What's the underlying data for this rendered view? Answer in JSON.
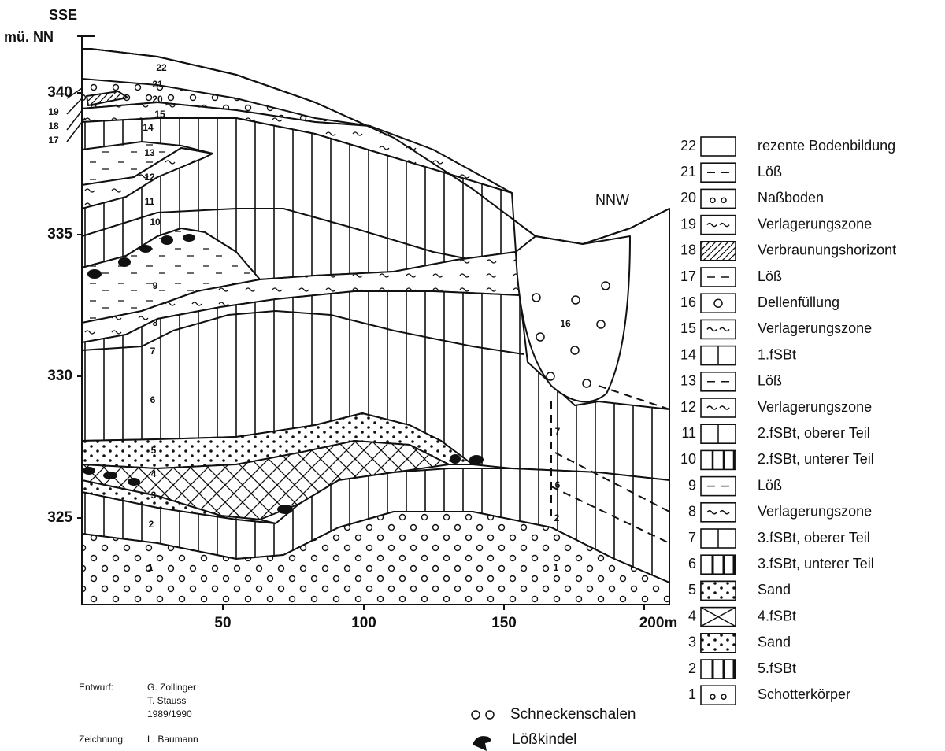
{
  "header": {
    "left_direction": "SSE",
    "elevation_unit": "mü. NN",
    "right_direction": "NNW"
  },
  "y_axis_labels": [
    "340",
    "335",
    "330",
    "325"
  ],
  "x_axis_labels": [
    "50",
    "100",
    "150",
    "200m"
  ],
  "section_labels": [
    "22",
    "21",
    "20",
    "19",
    "18",
    "17",
    "15",
    "14",
    "13",
    "12",
    "11",
    "10",
    "9",
    "8",
    "7",
    "6",
    "5",
    "4",
    "3",
    "2",
    "1",
    "16",
    "7",
    "6",
    "2",
    "1"
  ],
  "legend": [
    {
      "number": "22",
      "label": "rezente Bodenbildung"
    },
    {
      "number": "21",
      "label": "Löß"
    },
    {
      "number": "20",
      "label": "Naßboden"
    },
    {
      "number": "19",
      "label": "Verlagerungszone"
    },
    {
      "number": "18",
      "label": "Verbraunungshorizont"
    },
    {
      "number": "17",
      "label": "Löß"
    },
    {
      "number": "16",
      "label": "Dellenfüllung"
    },
    {
      "number": "15",
      "label": "Verlagerungszone"
    },
    {
      "number": "14",
      "label": "1.fSBt"
    },
    {
      "number": "13",
      "label": "Löß"
    },
    {
      "number": "12",
      "label": "Verlagerungszone"
    },
    {
      "number": "11",
      "label": "2.fSBt, oberer Teil"
    },
    {
      "number": "10",
      "label": "2.fSBt, unterer Teil"
    },
    {
      "number": "9",
      "label": "Löß"
    },
    {
      "number": "8",
      "label": "Verlagerungszone"
    },
    {
      "number": "7",
      "label": "3.fSBt, oberer Teil"
    },
    {
      "number": "6",
      "label": "3.fSBt, unterer Teil"
    },
    {
      "number": "5",
      "label": "Sand"
    },
    {
      "number": "4",
      "label": "4.fSBt"
    },
    {
      "number": "3",
      "label": "Sand"
    },
    {
      "number": "2",
      "label": "5.fSBt"
    },
    {
      "number": "1",
      "label": "Schotterkörper"
    }
  ],
  "symbols": [
    {
      "label": "Schneckenschalen"
    },
    {
      "label": "Lößkindel"
    }
  ],
  "credits": {
    "design_label": "Entwurf:",
    "design_authors": [
      "G. Zollinger",
      "T. Stauss",
      "1989/1990"
    ],
    "drawing_label": "Zeichnung:",
    "drawing_author": "L. Baumann"
  }
}
